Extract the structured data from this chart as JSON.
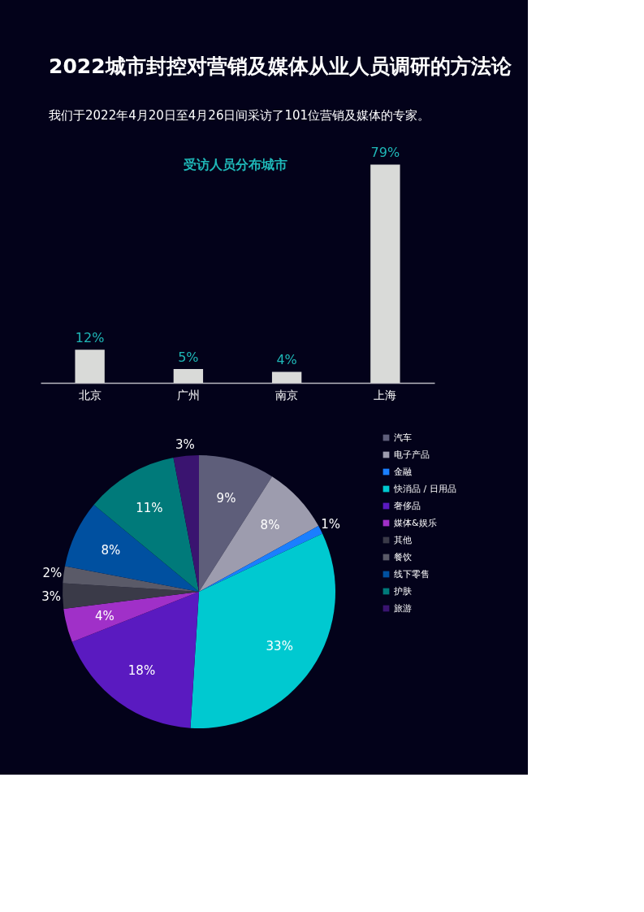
{
  "chart_data": [
    {
      "type": "bar",
      "title": "2022城市封控对营销及媒体从业人员调研的方法论",
      "subtitle": "我们于2022年4月20日至4月26日间采访了101位营销及媒体的专家。",
      "annotations": [
        "受访人员分布城市"
      ],
      "categories": [
        "北京",
        "广州",
        "南京",
        "上海"
      ],
      "values": [
        12,
        5,
        4,
        79
      ],
      "color": "#d9dad8",
      "value_labels": [
        "12%",
        "5%",
        "4%",
        "79%"
      ],
      "grid": false
    },
    {
      "type": "pie",
      "categories": [
        "汽车",
        "电子产品",
        "金融",
        "快消品 / 日用品",
        "奢侈品",
        "媒体&娱乐",
        "其他",
        "餐饮",
        "线下零售",
        "护肤",
        "旅游"
      ],
      "values": [
        9,
        8,
        1,
        33,
        18,
        4,
        3,
        2,
        8,
        11,
        3
      ],
      "colors": [
        "#5e5e7a",
        "#9d9cae",
        "#1a7fff",
        "#00c9d0",
        "#5a1ac0",
        "#a030c8",
        "#3a3a48",
        "#5a5a68",
        "#0050a0",
        "#007a7a",
        "#3a1470"
      ],
      "value_labels": [
        "9%",
        "8%",
        "1%",
        "33%",
        "18%",
        "4%",
        "3%",
        "2%",
        "8%",
        "11%",
        "3%"
      ],
      "legend": "right"
    }
  ]
}
